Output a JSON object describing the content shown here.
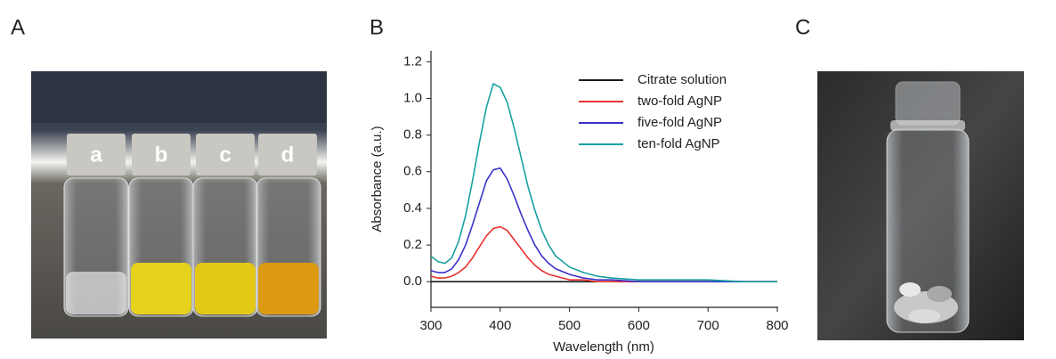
{
  "panel_labels": [
    "A",
    "B",
    "C"
  ],
  "vial_labels": [
    "a",
    "b",
    "c",
    "d"
  ],
  "chart_data": {
    "type": "line",
    "x_label": "Wavelength (nm)",
    "y_label": "Absorbance (a.u.)",
    "x": [
      300,
      310,
      320,
      330,
      340,
      350,
      360,
      370,
      380,
      390,
      400,
      410,
      420,
      430,
      440,
      450,
      460,
      470,
      480,
      500,
      520,
      540,
      560,
      600,
      650,
      700,
      750,
      800
    ],
    "series": [
      {
        "name": "Citrate solution",
        "color": "#1a1a1a",
        "values": [
          0,
          0,
          0,
          0,
          0,
          0,
          0,
          0,
          0,
          0,
          0,
          0,
          0,
          0,
          0,
          0,
          0,
          0,
          0,
          0,
          0,
          0,
          0,
          0,
          0,
          0,
          0,
          0
        ]
      },
      {
        "name": "two-fold AgNP",
        "color": "#e8312f",
        "values": [
          0.03,
          0.02,
          0.02,
          0.03,
          0.05,
          0.08,
          0.13,
          0.19,
          0.25,
          0.29,
          0.3,
          0.28,
          0.23,
          0.18,
          0.13,
          0.09,
          0.06,
          0.04,
          0.03,
          0.01,
          0.01,
          0,
          0,
          0,
          0,
          0,
          0,
          0
        ]
      },
      {
        "name": "five-fold AgNP",
        "color": "#3a32c8",
        "values": [
          0.06,
          0.05,
          0.05,
          0.07,
          0.12,
          0.2,
          0.31,
          0.43,
          0.55,
          0.61,
          0.62,
          0.56,
          0.47,
          0.37,
          0.28,
          0.2,
          0.14,
          0.1,
          0.07,
          0.04,
          0.02,
          0.01,
          0.01,
          0,
          0,
          0,
          0,
          0
        ]
      },
      {
        "name": "ten-fold AgNP",
        "color": "#1aa0a0",
        "values": [
          0.14,
          0.11,
          0.1,
          0.13,
          0.22,
          0.36,
          0.55,
          0.76,
          0.95,
          1.08,
          1.06,
          0.98,
          0.84,
          0.68,
          0.52,
          0.39,
          0.28,
          0.2,
          0.14,
          0.08,
          0.05,
          0.03,
          0.02,
          0.01,
          0.01,
          0.01,
          0,
          0
        ]
      }
    ],
    "xlim": [
      300,
      800
    ],
    "xticks": [
      300,
      400,
      500,
      600,
      700,
      800
    ],
    "ylim": [
      -0.14,
      1.26
    ],
    "yticks": [
      {
        "value": 0,
        "label": "0.0"
      },
      0.2,
      0.4,
      0.6,
      0.8,
      {
        "value": 1,
        "label": "1.0"
      },
      1.2
    ],
    "legend": "upper right"
  }
}
